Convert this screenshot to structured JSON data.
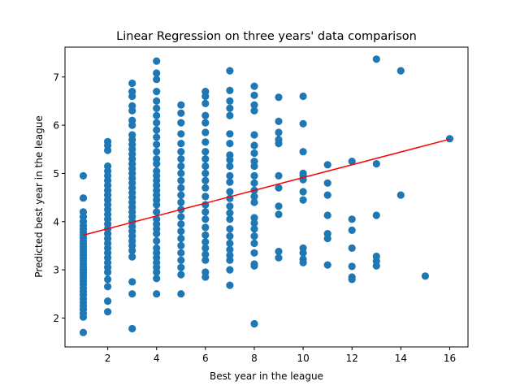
{
  "chart_data": {
    "type": "scatter",
    "title": "Linear Regression on three years' data comparison",
    "xlabel": "Best year in the league",
    "ylabel": "Predicted best year in the league",
    "xlim": [
      0.25,
      16.75
    ],
    "ylim": [
      1.4,
      7.62
    ],
    "x_ticks": [
      2,
      4,
      6,
      8,
      10,
      12,
      14,
      16
    ],
    "y_ticks": [
      2,
      3,
      4,
      5,
      6,
      7
    ],
    "grid": false,
    "legend": "none",
    "colors": {
      "points": "#1f77b4",
      "line": "#ff0000",
      "axes": "#000000"
    },
    "regression_line": {
      "x": [
        1,
        16
      ],
      "y": [
        3.72,
        5.71
      ]
    },
    "series": [
      {
        "points": [
          [
            1,
            4.95
          ],
          [
            1,
            4.49
          ],
          [
            1,
            4.2
          ],
          [
            1,
            4.1
          ],
          [
            1,
            4.0
          ],
          [
            1,
            3.92
          ],
          [
            1,
            3.85
          ],
          [
            1,
            3.78
          ],
          [
            1,
            3.72
          ],
          [
            1,
            3.66
          ],
          [
            1,
            3.6
          ],
          [
            1,
            3.54
          ],
          [
            1,
            3.48
          ],
          [
            1,
            3.42
          ],
          [
            1,
            3.36
          ],
          [
            1,
            3.3
          ],
          [
            1,
            3.24
          ],
          [
            1,
            3.18
          ],
          [
            1,
            3.12
          ],
          [
            1,
            3.06
          ],
          [
            1,
            3.0
          ],
          [
            1,
            2.94
          ],
          [
            1,
            2.88
          ],
          [
            1,
            2.82
          ],
          [
            1,
            2.76
          ],
          [
            1,
            2.7
          ],
          [
            1,
            2.62
          ],
          [
            1,
            2.55
          ],
          [
            1,
            2.48
          ],
          [
            1,
            2.4
          ],
          [
            1,
            2.32
          ],
          [
            1,
            2.25
          ],
          [
            1,
            2.18
          ],
          [
            1,
            2.1
          ],
          [
            1,
            2.02
          ],
          [
            1,
            1.7
          ],
          [
            2,
            5.66
          ],
          [
            2,
            5.58
          ],
          [
            2,
            5.48
          ],
          [
            2,
            5.15
          ],
          [
            2,
            5.05
          ],
          [
            2,
            4.95
          ],
          [
            2,
            4.85
          ],
          [
            2,
            4.75
          ],
          [
            2,
            4.65
          ],
          [
            2,
            4.55
          ],
          [
            2,
            4.45
          ],
          [
            2,
            4.35
          ],
          [
            2,
            4.25
          ],
          [
            2,
            4.15
          ],
          [
            2,
            4.05
          ],
          [
            2,
            3.95
          ],
          [
            2,
            3.85
          ],
          [
            2,
            3.75
          ],
          [
            2,
            3.65
          ],
          [
            2,
            3.55
          ],
          [
            2,
            3.45
          ],
          [
            2,
            3.35
          ],
          [
            2,
            3.25
          ],
          [
            2,
            3.15
          ],
          [
            2,
            3.05
          ],
          [
            2,
            2.95
          ],
          [
            2,
            2.8
          ],
          [
            2,
            2.65
          ],
          [
            2,
            2.35
          ],
          [
            2,
            2.13
          ],
          [
            3,
            6.87
          ],
          [
            3,
            6.7
          ],
          [
            3,
            6.6
          ],
          [
            3,
            6.4
          ],
          [
            3,
            6.3
          ],
          [
            3,
            6.1
          ],
          [
            3,
            6.0
          ],
          [
            3,
            5.8
          ],
          [
            3,
            5.7
          ],
          [
            3,
            5.6
          ],
          [
            3,
            5.5
          ],
          [
            3,
            5.4
          ],
          [
            3,
            5.3
          ],
          [
            3,
            5.2
          ],
          [
            3,
            5.1
          ],
          [
            3,
            5.0
          ],
          [
            3,
            4.9
          ],
          [
            3,
            4.8
          ],
          [
            3,
            4.7
          ],
          [
            3,
            4.6
          ],
          [
            3,
            4.5
          ],
          [
            3,
            4.4
          ],
          [
            3,
            4.3
          ],
          [
            3,
            4.2
          ],
          [
            3,
            4.1
          ],
          [
            3,
            4.0
          ],
          [
            3,
            3.9
          ],
          [
            3,
            3.8
          ],
          [
            3,
            3.7
          ],
          [
            3,
            3.6
          ],
          [
            3,
            3.5
          ],
          [
            3,
            3.4
          ],
          [
            3,
            3.27
          ],
          [
            3,
            2.75
          ],
          [
            3,
            2.5
          ],
          [
            3,
            1.78
          ],
          [
            4,
            7.33
          ],
          [
            4,
            7.08
          ],
          [
            4,
            6.95
          ],
          [
            4,
            6.7
          ],
          [
            4,
            6.5
          ],
          [
            4,
            6.35
          ],
          [
            4,
            6.2
          ],
          [
            4,
            6.05
          ],
          [
            4,
            5.9
          ],
          [
            4,
            5.75
          ],
          [
            4,
            5.6
          ],
          [
            4,
            5.45
          ],
          [
            4,
            5.3
          ],
          [
            4,
            5.2
          ],
          [
            4,
            5.05
          ],
          [
            4,
            4.95
          ],
          [
            4,
            4.85
          ],
          [
            4,
            4.75
          ],
          [
            4,
            4.65
          ],
          [
            4,
            4.55
          ],
          [
            4,
            4.45
          ],
          [
            4,
            4.35
          ],
          [
            4,
            4.2
          ],
          [
            4,
            4.05
          ],
          [
            4,
            3.95
          ],
          [
            4,
            3.85
          ],
          [
            4,
            3.75
          ],
          [
            4,
            3.6
          ],
          [
            4,
            3.45
          ],
          [
            4,
            3.35
          ],
          [
            4,
            3.25
          ],
          [
            4,
            3.15
          ],
          [
            4,
            3.05
          ],
          [
            4,
            2.95
          ],
          [
            4,
            2.82
          ],
          [
            4,
            2.5
          ],
          [
            5,
            6.42
          ],
          [
            5,
            6.25
          ],
          [
            5,
            6.05
          ],
          [
            5,
            5.82
          ],
          [
            5,
            5.62
          ],
          [
            5,
            5.45
          ],
          [
            5,
            5.3
          ],
          [
            5,
            5.15
          ],
          [
            5,
            5.0
          ],
          [
            5,
            4.85
          ],
          [
            5,
            4.7
          ],
          [
            5,
            4.55
          ],
          [
            5,
            4.4
          ],
          [
            5,
            4.25
          ],
          [
            5,
            4.1
          ],
          [
            5,
            3.95
          ],
          [
            5,
            3.8
          ],
          [
            5,
            3.65
          ],
          [
            5,
            3.5
          ],
          [
            5,
            3.35
          ],
          [
            5,
            3.2
          ],
          [
            5,
            3.05
          ],
          [
            5,
            2.9
          ],
          [
            5,
            2.5
          ],
          [
            6,
            6.7
          ],
          [
            6,
            6.6
          ],
          [
            6,
            6.45
          ],
          [
            6,
            6.2
          ],
          [
            6,
            6.05
          ],
          [
            6,
            5.85
          ],
          [
            6,
            5.65
          ],
          [
            6,
            5.45
          ],
          [
            6,
            5.3
          ],
          [
            6,
            5.15
          ],
          [
            6,
            5.0
          ],
          [
            6,
            4.85
          ],
          [
            6,
            4.7
          ],
          [
            6,
            4.52
          ],
          [
            6,
            4.35
          ],
          [
            6,
            4.2
          ],
          [
            6,
            4.05
          ],
          [
            6,
            3.88
          ],
          [
            6,
            3.72
          ],
          [
            6,
            3.58
          ],
          [
            6,
            3.45
          ],
          [
            6,
            3.32
          ],
          [
            6,
            3.2
          ],
          [
            6,
            2.95
          ],
          [
            6,
            2.85
          ],
          [
            7,
            7.13
          ],
          [
            7,
            6.72
          ],
          [
            7,
            6.5
          ],
          [
            7,
            6.35
          ],
          [
            7,
            6.2
          ],
          [
            7,
            5.82
          ],
          [
            7,
            5.62
          ],
          [
            7,
            5.38
          ],
          [
            7,
            5.28
          ],
          [
            7,
            5.15
          ],
          [
            7,
            4.95
          ],
          [
            7,
            4.82
          ],
          [
            7,
            4.62
          ],
          [
            7,
            4.48
          ],
          [
            7,
            4.32
          ],
          [
            7,
            4.18
          ],
          [
            7,
            4.05
          ],
          [
            7,
            3.85
          ],
          [
            7,
            3.7
          ],
          [
            7,
            3.55
          ],
          [
            7,
            3.42
          ],
          [
            7,
            3.3
          ],
          [
            7,
            3.2
          ],
          [
            7,
            3.0
          ],
          [
            7,
            2.68
          ],
          [
            8,
            6.81
          ],
          [
            8,
            6.62
          ],
          [
            8,
            6.42
          ],
          [
            8,
            6.3
          ],
          [
            8,
            5.8
          ],
          [
            8,
            5.58
          ],
          [
            8,
            5.42
          ],
          [
            8,
            5.25
          ],
          [
            8,
            5.15
          ],
          [
            8,
            4.95
          ],
          [
            8,
            4.8
          ],
          [
            8,
            4.65
          ],
          [
            8,
            4.52
          ],
          [
            8,
            4.4
          ],
          [
            8,
            4.08
          ],
          [
            8,
            3.97
          ],
          [
            8,
            3.85
          ],
          [
            8,
            3.7
          ],
          [
            8,
            3.55
          ],
          [
            8,
            3.35
          ],
          [
            8,
            3.12
          ],
          [
            8,
            3.08
          ],
          [
            8,
            1.88
          ],
          [
            9,
            6.58
          ],
          [
            9,
            6.08
          ],
          [
            9,
            5.85
          ],
          [
            9,
            5.7
          ],
          [
            9,
            5.62
          ],
          [
            9,
            4.95
          ],
          [
            9,
            4.7
          ],
          [
            9,
            4.32
          ],
          [
            9,
            4.15
          ],
          [
            9,
            3.38
          ],
          [
            9,
            3.25
          ],
          [
            10,
            6.6
          ],
          [
            10,
            6.03
          ],
          [
            10,
            5.45
          ],
          [
            10,
            5.0
          ],
          [
            10,
            4.95
          ],
          [
            10,
            4.87
          ],
          [
            10,
            4.62
          ],
          [
            10,
            4.45
          ],
          [
            10,
            3.45
          ],
          [
            10,
            3.35
          ],
          [
            10,
            3.22
          ],
          [
            10,
            3.15
          ],
          [
            11,
            5.18
          ],
          [
            11,
            4.8
          ],
          [
            11,
            4.55
          ],
          [
            11,
            4.13
          ],
          [
            11,
            3.75
          ],
          [
            11,
            3.65
          ],
          [
            11,
            3.1
          ],
          [
            12,
            5.25
          ],
          [
            12,
            4.05
          ],
          [
            12,
            3.82
          ],
          [
            12,
            3.45
          ],
          [
            12,
            3.07
          ],
          [
            12,
            2.85
          ],
          [
            12,
            2.8
          ],
          [
            13,
            7.37
          ],
          [
            13,
            5.2
          ],
          [
            13,
            4.13
          ],
          [
            13,
            3.28
          ],
          [
            13,
            3.18
          ],
          [
            13,
            3.08
          ],
          [
            14,
            7.13
          ],
          [
            14,
            4.55
          ],
          [
            15,
            2.87
          ],
          [
            16,
            5.72
          ]
        ]
      }
    ]
  }
}
